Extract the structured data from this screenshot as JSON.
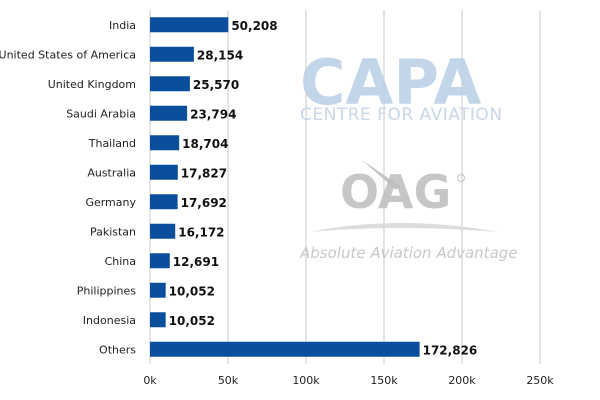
{
  "chart_data": {
    "type": "bar",
    "orientation": "horizontal",
    "categories": [
      "India",
      "United States of America",
      "United Kingdom",
      "Saudi Arabia",
      "Thailand",
      "Australia",
      "Germany",
      "Pakistan",
      "China",
      "Philippines",
      "Indonesia",
      "Others"
    ],
    "values": [
      50208,
      28154,
      25570,
      23794,
      18704,
      17827,
      17692,
      16172,
      12691,
      10052,
      10052,
      172826
    ],
    "value_labels": [
      "50,208",
      "28,154",
      "25,570",
      "23,794",
      "18,704",
      "17,827",
      "17,692",
      "16,172",
      "12,691",
      "10,052",
      "10,052",
      "172,826"
    ],
    "xlim": [
      0,
      250000
    ],
    "xticks": [
      0,
      50000,
      100000,
      150000,
      200000,
      250000
    ],
    "xtick_labels": [
      "0k",
      "50k",
      "100k",
      "150k",
      "200k",
      "250k"
    ],
    "title": "",
    "xlabel": "",
    "ylabel": "",
    "grid": "vertical",
    "legend": "none",
    "bar_color": "#0b4f9c"
  },
  "watermarks": {
    "capa_logo": "CAPA",
    "capa_subtitle": "CENTRE FOR AVIATION",
    "oag_logo": "OAG",
    "oag_tagline": "Absolute Aviation Advantage"
  }
}
